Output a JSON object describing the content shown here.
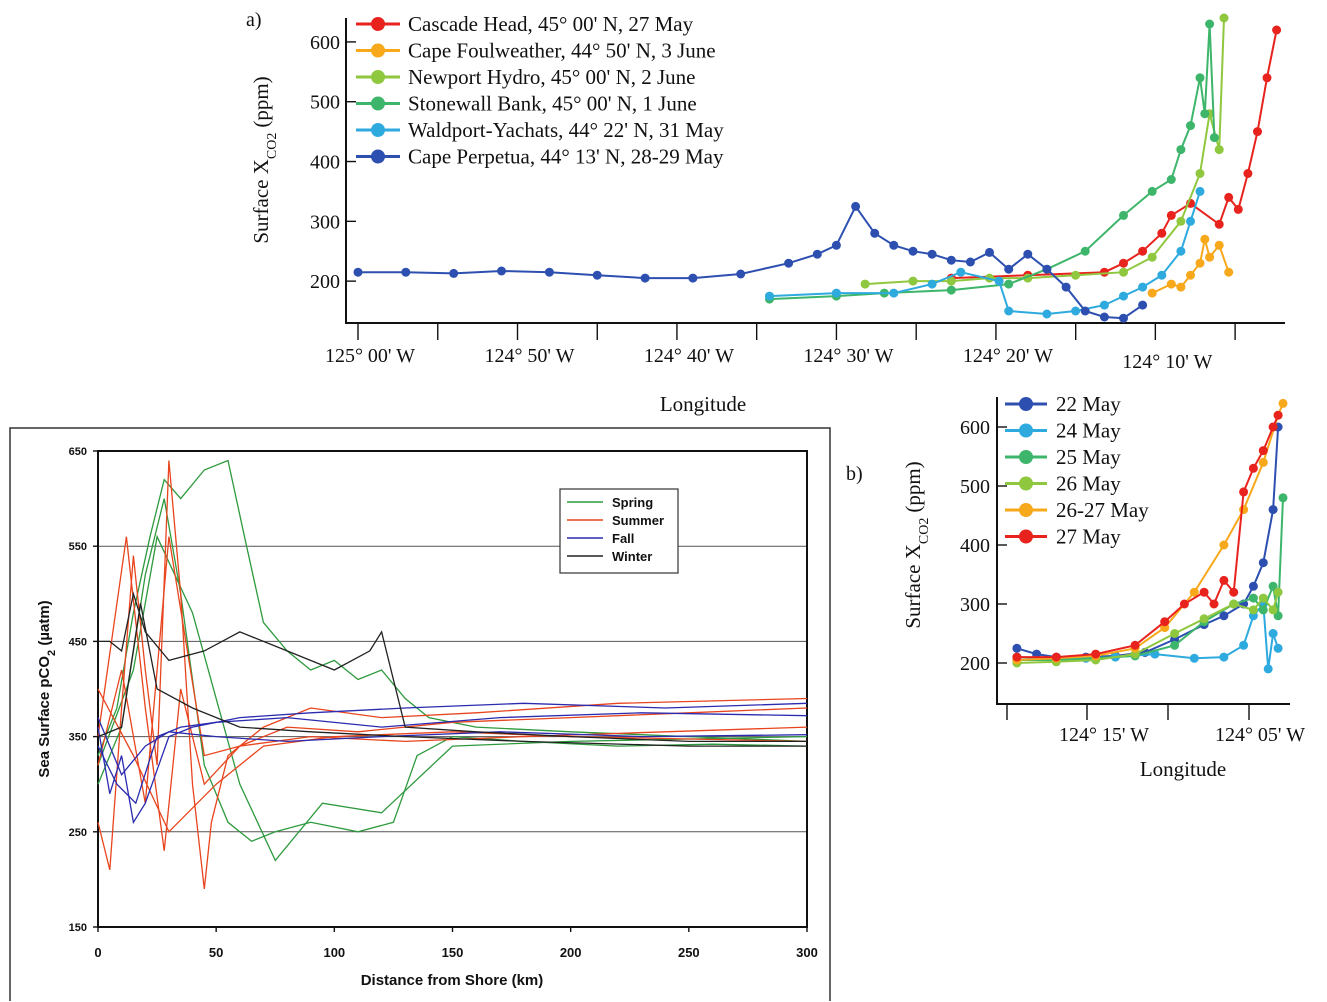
{
  "colors": {
    "red": "#e8231e",
    "orange": "#f7a81b",
    "yellowgreen": "#8fc73e",
    "green": "#3db56a",
    "lightblue": "#2eaadf",
    "blue": "#2d4fb0",
    "spring": "#2e9a3e",
    "summer": "#e8451e",
    "fall": "#2b2bb0",
    "winter": "#222222"
  },
  "chart_data": [
    {
      "id": "panel_a",
      "type": "line",
      "panel_label": "a)",
      "xlabel": "Longitude",
      "ylabel_main": "Surface X",
      "ylabel_sub": "CO2",
      "ylabel_unit": "(ppm)",
      "x_ticks": [
        {
          "x": -125.0,
          "label": "125° 00' W"
        },
        {
          "x": -124.8333,
          "label": "124° 50' W"
        },
        {
          "x": -124.6667,
          "label": "124° 40' W"
        },
        {
          "x": -124.5,
          "label": "124° 30' W"
        },
        {
          "x": -124.3333,
          "label": "124° 20' W"
        },
        {
          "x": -124.1667,
          "label": "124° 10' W"
        }
      ],
      "xlim": [
        -125.01,
        -124.03
      ],
      "y_ticks": [
        200,
        300,
        400,
        500,
        600
      ],
      "ylim": [
        130,
        640
      ],
      "series": [
        {
          "name": "Cascade Head, 45° 00' N, 27 May",
          "color": "red",
          "x": [
            -124.38,
            -124.3,
            -124.22,
            -124.2,
            -124.18,
            -124.16,
            -124.15,
            -124.13,
            -124.1,
            -124.09,
            -124.08,
            -124.07,
            -124.06,
            -124.05,
            -124.04
          ],
          "y": [
            205,
            210,
            215,
            230,
            250,
            280,
            310,
            330,
            295,
            340,
            320,
            380,
            450,
            540,
            620
          ]
        },
        {
          "name": "Cape Foulweather, 44° 50' N, 3 June",
          "color": "orange",
          "x": [
            -124.17,
            -124.15,
            -124.14,
            -124.13,
            -124.12,
            -124.115,
            -124.11,
            -124.1,
            -124.09
          ],
          "y": [
            180,
            195,
            190,
            210,
            230,
            270,
            240,
            260,
            215
          ]
        },
        {
          "name": "Newport Hydro, 45° 00' N, 2 June",
          "color": "yellowgreen",
          "x": [
            -124.47,
            -124.42,
            -124.38,
            -124.34,
            -124.3,
            -124.25,
            -124.2,
            -124.17,
            -124.14,
            -124.12,
            -124.11,
            -124.1,
            -124.095
          ],
          "y": [
            195,
            200,
            200,
            205,
            205,
            210,
            215,
            240,
            300,
            380,
            480,
            420,
            640
          ]
        },
        {
          "name": "Stonewall Bank, 45° 00' N, 1 June",
          "color": "green",
          "x": [
            -124.57,
            -124.5,
            -124.45,
            -124.38,
            -124.32,
            -124.28,
            -124.24,
            -124.2,
            -124.17,
            -124.15,
            -124.14,
            -124.13,
            -124.12,
            -124.115,
            -124.11,
            -124.105
          ],
          "y": [
            170,
            175,
            180,
            185,
            195,
            220,
            250,
            310,
            350,
            370,
            420,
            460,
            540,
            480,
            630,
            440
          ]
        },
        {
          "name": "Waldport-Yachats, 44° 22' N, 31 May",
          "color": "lightblue",
          "x": [
            -124.57,
            -124.5,
            -124.44,
            -124.4,
            -124.37,
            -124.33,
            -124.32,
            -124.28,
            -124.25,
            -124.22,
            -124.2,
            -124.18,
            -124.16,
            -124.14,
            -124.13,
            -124.12
          ],
          "y": [
            175,
            180,
            180,
            195,
            215,
            200,
            150,
            145,
            150,
            160,
            175,
            190,
            210,
            250,
            300,
            350
          ]
        },
        {
          "name": "Cape Perpetua, 44° 13' N, 28-29 May",
          "color": "blue",
          "x": [
            -125.0,
            -124.95,
            -124.9,
            -124.85,
            -124.8,
            -124.75,
            -124.7,
            -124.65,
            -124.6,
            -124.55,
            -124.52,
            -124.5,
            -124.48,
            -124.46,
            -124.44,
            -124.42,
            -124.4,
            -124.38,
            -124.36,
            -124.34,
            -124.32,
            -124.3,
            -124.28,
            -124.26,
            -124.24,
            -124.22,
            -124.2,
            -124.18
          ],
          "y": [
            215,
            215,
            213,
            217,
            215,
            210,
            205,
            205,
            212,
            230,
            245,
            260,
            325,
            280,
            260,
            250,
            245,
            235,
            232,
            248,
            220,
            245,
            220,
            190,
            150,
            140,
            138,
            160
          ]
        }
      ]
    },
    {
      "id": "panel_b",
      "type": "line",
      "panel_label": "b)",
      "xlabel": "Longitude",
      "ylabel_main": "Surface X",
      "ylabel_sub": "CO2",
      "ylabel_unit": "(ppm)",
      "x_ticks": [
        {
          "x": -124.25,
          "label": "124° 15' W"
        },
        {
          "x": -124.0833,
          "label": "124° 05' W"
        }
      ],
      "xlim": [
        -124.33,
        -124.04
      ],
      "y_ticks": [
        200,
        300,
        400,
        500,
        600
      ],
      "ylim": [
        130,
        650
      ],
      "series": [
        {
          "name": "22 May",
          "color": "blue",
          "x": [
            -124.32,
            -124.3,
            -124.28,
            -124.25,
            -124.22,
            -124.19,
            -124.16,
            -124.13,
            -124.11,
            -124.09,
            -124.08,
            -124.07,
            -124.06,
            -124.055
          ],
          "y": [
            225,
            215,
            210,
            210,
            212,
            218,
            240,
            265,
            280,
            300,
            330,
            370,
            460,
            600
          ]
        },
        {
          "name": "24 May",
          "color": "lightblue",
          "x": [
            -124.32,
            -124.28,
            -124.25,
            -124.22,
            -124.18,
            -124.14,
            -124.11,
            -124.09,
            -124.08,
            -124.07,
            -124.065,
            -124.06,
            -124.055
          ],
          "y": [
            210,
            208,
            208,
            210,
            215,
            208,
            210,
            230,
            280,
            300,
            190,
            250,
            225
          ]
        },
        {
          "name": "25 May",
          "color": "green",
          "x": [
            -124.32,
            -124.28,
            -124.24,
            -124.2,
            -124.16,
            -124.13,
            -124.1,
            -124.08,
            -124.07,
            -124.06,
            -124.055,
            -124.05
          ],
          "y": [
            205,
            205,
            208,
            212,
            230,
            270,
            300,
            310,
            290,
            330,
            280,
            480
          ]
        },
        {
          "name": "26 May",
          "color": "yellowgreen",
          "x": [
            -124.32,
            -124.28,
            -124.24,
            -124.2,
            -124.16,
            -124.13,
            -124.1,
            -124.08,
            -124.07,
            -124.06,
            -124.055
          ],
          "y": [
            200,
            202,
            205,
            215,
            250,
            275,
            300,
            290,
            310,
            290,
            320
          ]
        },
        {
          "name": "26-27 May",
          "color": "orange",
          "x": [
            -124.32,
            -124.28,
            -124.24,
            -124.2,
            -124.17,
            -124.14,
            -124.11,
            -124.09,
            -124.07,
            -124.055,
            -124.05
          ],
          "y": [
            205,
            208,
            212,
            225,
            260,
            320,
            400,
            460,
            540,
            620,
            640
          ]
        },
        {
          "name": "27 May",
          "color": "red",
          "x": [
            -124.32,
            -124.28,
            -124.24,
            -124.2,
            -124.17,
            -124.15,
            -124.13,
            -124.12,
            -124.11,
            -124.1,
            -124.09,
            -124.08,
            -124.07,
            -124.06,
            -124.055
          ],
          "y": [
            210,
            210,
            215,
            230,
            270,
            300,
            320,
            300,
            340,
            320,
            490,
            530,
            560,
            600,
            620
          ]
        }
      ]
    },
    {
      "id": "panel_c",
      "type": "line",
      "xlabel": "Distance from Shore (km)",
      "ylabel_main": "Sea Surface pCO",
      "ylabel_sub": "2",
      "ylabel_unit": " (µatm)",
      "x_ticks": [
        0,
        50,
        100,
        150,
        200,
        250,
        300
      ],
      "xlim": [
        0,
        300
      ],
      "y_ticks": [
        150,
        250,
        350,
        450,
        550,
        650
      ],
      "ylim": [
        150,
        650
      ],
      "grid": true,
      "legend_position": "top-right",
      "legend": [
        "Spring",
        "Summer",
        "Fall",
        "Winter"
      ],
      "series": [
        {
          "name": "Spring",
          "color": "spring",
          "x": [
            0,
            8,
            15,
            22,
            28,
            35,
            45,
            55,
            62,
            70,
            80,
            90,
            100,
            110,
            120,
            130,
            140,
            160,
            200,
            250,
            300
          ],
          "y": [
            330,
            380,
            480,
            560,
            620,
            600,
            630,
            640,
            560,
            470,
            440,
            420,
            430,
            410,
            420,
            390,
            370,
            360,
            355,
            350,
            345
          ]
        },
        {
          "name": "Spring",
          "color": "spring",
          "x": [
            0,
            10,
            20,
            28,
            35,
            45,
            55,
            65,
            75,
            90,
            110,
            125,
            135,
            150,
            180,
            220,
            260,
            300
          ],
          "y": [
            300,
            360,
            520,
            600,
            500,
            320,
            260,
            240,
            250,
            260,
            250,
            260,
            330,
            350,
            345,
            340,
            342,
            340
          ]
        },
        {
          "name": "Spring",
          "color": "spring",
          "x": [
            0,
            15,
            25,
            40,
            60,
            75,
            95,
            120,
            150,
            200,
            300
          ],
          "y": [
            320,
            420,
            560,
            480,
            300,
            220,
            280,
            270,
            340,
            345,
            350
          ]
        },
        {
          "name": "Summer",
          "color": "summer",
          "x": [
            0,
            5,
            10,
            15,
            20,
            25,
            30,
            35,
            40,
            45,
            48,
            55,
            70,
            90,
            120,
            160,
            220,
            300
          ],
          "y": [
            260,
            210,
            380,
            540,
            420,
            320,
            640,
            500,
            300,
            190,
            260,
            330,
            360,
            380,
            370,
            375,
            385,
            390
          ]
        },
        {
          "name": "Summer",
          "color": "summer",
          "x": [
            0,
            12,
            20,
            28,
            35,
            45,
            60,
            80,
            110,
            150,
            200,
            250,
            300
          ],
          "y": [
            350,
            560,
            380,
            230,
            400,
            300,
            340,
            360,
            355,
            365,
            370,
            375,
            380
          ]
        },
        {
          "name": "Summer",
          "color": "summer",
          "x": [
            0,
            10,
            20,
            30,
            45,
            60,
            90,
            130,
            180,
            240,
            300
          ],
          "y": [
            320,
            420,
            280,
            560,
            330,
            340,
            350,
            345,
            350,
            355,
            360
          ]
        },
        {
          "name": "Summer",
          "color": "summer",
          "x": [
            0,
            15,
            30,
            50,
            70,
            100,
            150,
            200,
            300
          ],
          "y": [
            400,
            330,
            250,
            300,
            340,
            350,
            355,
            350,
            345
          ]
        },
        {
          "name": "Fall",
          "color": "fall",
          "x": [
            0,
            5,
            10,
            15,
            20,
            30,
            40,
            60,
            90,
            130,
            180,
            240,
            300
          ],
          "y": [
            360,
            290,
            330,
            260,
            280,
            350,
            360,
            370,
            375,
            380,
            385,
            380,
            385
          ]
        },
        {
          "name": "Fall",
          "color": "fall",
          "x": [
            0,
            8,
            16,
            25,
            35,
            50,
            80,
            120,
            170,
            230,
            300
          ],
          "y": [
            340,
            300,
            280,
            350,
            360,
            365,
            370,
            360,
            370,
            375,
            372
          ]
        },
        {
          "name": "Fall",
          "color": "fall",
          "x": [
            0,
            10,
            20,
            30,
            50,
            80,
            120,
            170,
            230,
            300
          ],
          "y": [
            370,
            310,
            340,
            355,
            350,
            345,
            350,
            355,
            350,
            352
          ]
        },
        {
          "name": "Winter",
          "color": "winter",
          "x": [
            0,
            5,
            10,
            15,
            20,
            30,
            45,
            60,
            80,
            100,
            115,
            120,
            130,
            160,
            200,
            250,
            300
          ],
          "y": [
            450,
            450,
            440,
            500,
            460,
            430,
            440,
            460,
            440,
            420,
            440,
            460,
            360,
            355,
            350,
            345,
            345
          ]
        },
        {
          "name": "Winter",
          "color": "winter",
          "x": [
            0,
            10,
            18,
            25,
            40,
            60,
            90,
            130,
            180,
            250,
            300
          ],
          "y": [
            350,
            360,
            490,
            400,
            380,
            360,
            355,
            350,
            345,
            340,
            340
          ]
        }
      ]
    }
  ]
}
